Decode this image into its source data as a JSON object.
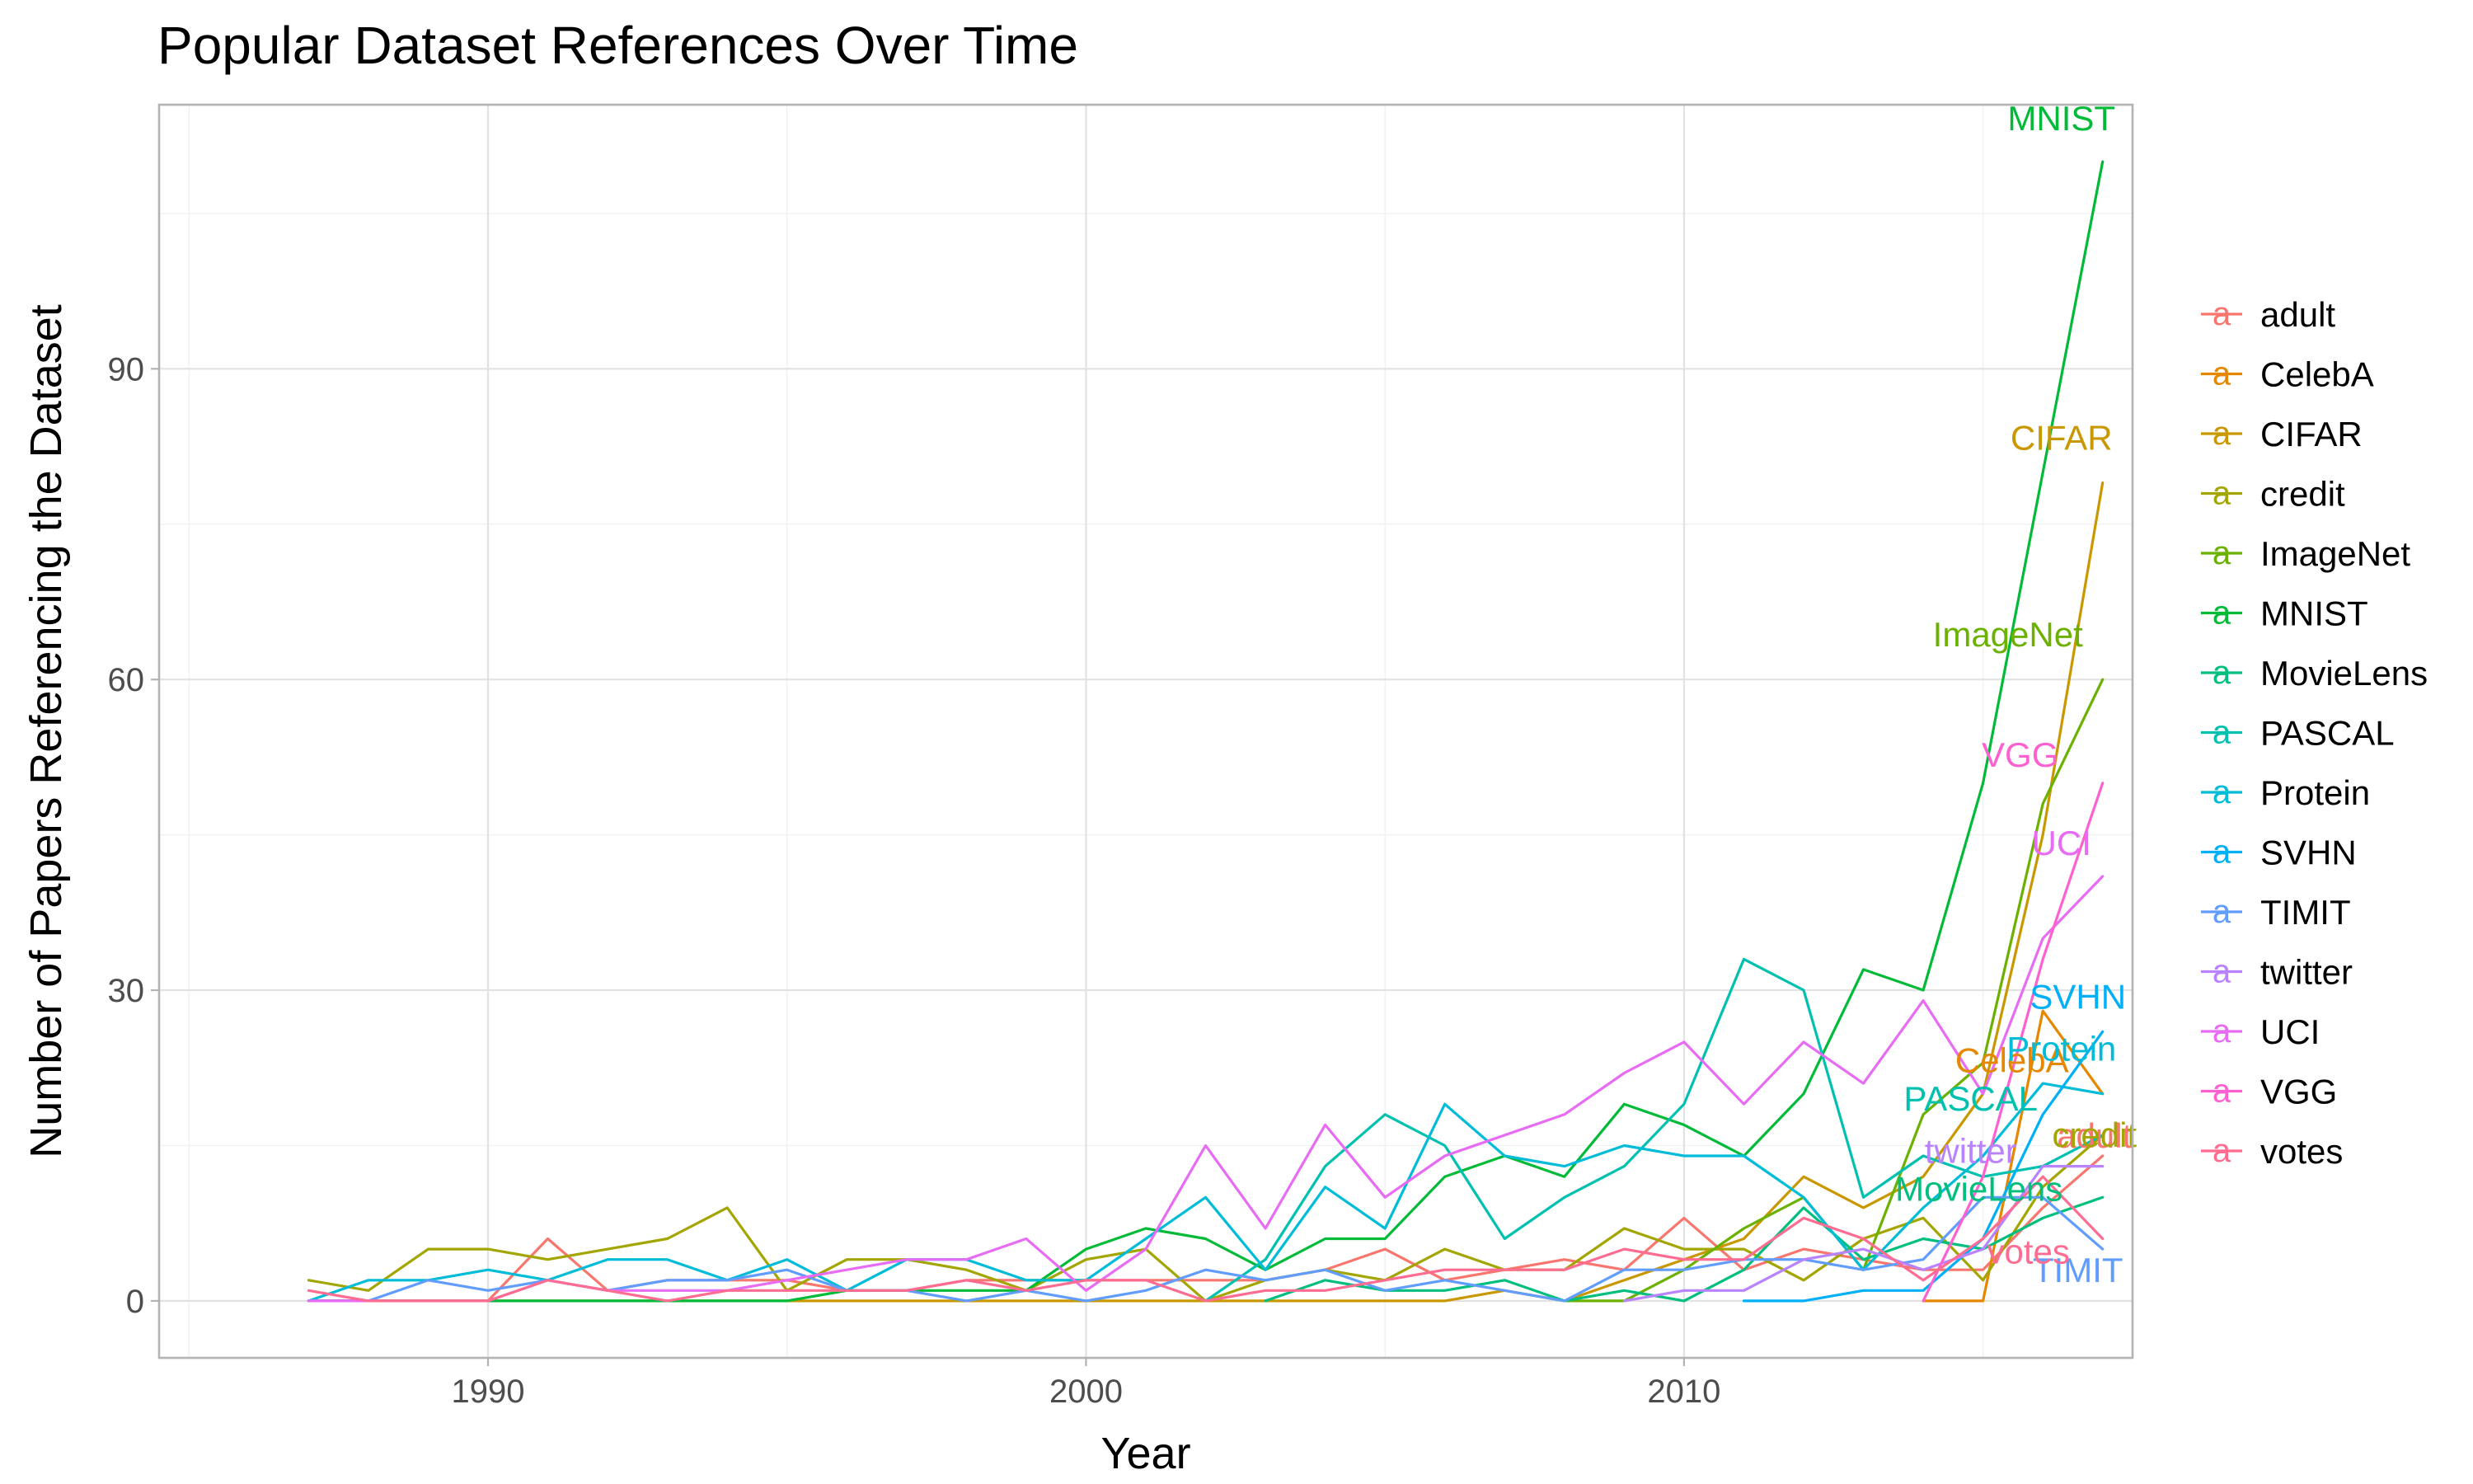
{
  "chart_data": {
    "type": "line",
    "title": "Popular Dataset References Over Time",
    "xlabel": "Year",
    "ylabel": "Number of Papers Referencing the Dataset",
    "xlim": [
      1984.5,
      2017.5
    ],
    "ylim": [
      -5.5,
      115.5
    ],
    "x_ticks": [
      1990,
      2000,
      2010
    ],
    "y_ticks": [
      0,
      30,
      60,
      90
    ],
    "grid": true,
    "legend_position": "right",
    "legend_key_glyph": "a",
    "x": [
      1987,
      1988,
      1989,
      1990,
      1991,
      1992,
      1993,
      1994,
      1995,
      1996,
      1997,
      1998,
      1999,
      2000,
      2001,
      2002,
      2003,
      2004,
      2005,
      2006,
      2007,
      2008,
      2009,
      2010,
      2011,
      2012,
      2013,
      2014,
      2015,
      2016,
      2017
    ],
    "series": [
      {
        "name": "adult",
        "color": "#F8766D",
        "values": [
          0,
          0,
          0,
          0,
          6,
          1,
          2,
          2,
          2,
          1,
          1,
          2,
          2,
          2,
          2,
          2,
          2,
          3,
          5,
          2,
          3,
          4,
          3,
          8,
          3,
          5,
          4,
          3,
          3,
          9,
          14
        ],
        "end_label": "adult"
      },
      {
        "name": "CelebA",
        "color": "#E58700",
        "values": [
          null,
          null,
          null,
          null,
          null,
          null,
          null,
          null,
          null,
          null,
          null,
          null,
          null,
          null,
          null,
          null,
          null,
          null,
          null,
          null,
          null,
          null,
          null,
          null,
          null,
          null,
          null,
          0,
          0,
          28,
          20
        ],
        "end_label": "CelebA"
      },
      {
        "name": "CIFAR",
        "color": "#C99800",
        "values": [
          0,
          0,
          0,
          0,
          0,
          0,
          0,
          0,
          0,
          0,
          0,
          0,
          0,
          0,
          0,
          0,
          0,
          0,
          0,
          0,
          1,
          0,
          2,
          4,
          6,
          12,
          9,
          12,
          20,
          45,
          79
        ],
        "end_label": "CIFAR"
      },
      {
        "name": "credit",
        "color": "#A3A500",
        "values": [
          2,
          1,
          5,
          5,
          4,
          5,
          6,
          9,
          1,
          4,
          4,
          3,
          1,
          4,
          5,
          0,
          2,
          3,
          2,
          5,
          3,
          3,
          7,
          5,
          5,
          2,
          6,
          8,
          2,
          11,
          16
        ],
        "end_label": "credit"
      },
      {
        "name": "ImageNet",
        "color": "#6BB100",
        "values": [
          null,
          null,
          null,
          null,
          null,
          null,
          null,
          null,
          null,
          null,
          null,
          null,
          null,
          null,
          null,
          null,
          null,
          null,
          null,
          null,
          null,
          0,
          0,
          3,
          7,
          10,
          3,
          18,
          23,
          48,
          60
        ],
        "end_label": "ImageNet"
      },
      {
        "name": "MNIST",
        "color": "#00BA38",
        "values": [
          0,
          0,
          0,
          0,
          0,
          0,
          0,
          0,
          0,
          1,
          1,
          1,
          1,
          5,
          7,
          6,
          3,
          6,
          6,
          12,
          14,
          12,
          19,
          17,
          14,
          20,
          32,
          30,
          50,
          80,
          110
        ],
        "end_label": "MNIST"
      },
      {
        "name": "MovieLens",
        "color": "#00BF7D",
        "values": [
          null,
          null,
          null,
          null,
          null,
          null,
          null,
          null,
          null,
          null,
          null,
          null,
          null,
          null,
          null,
          null,
          0,
          2,
          1,
          1,
          2,
          0,
          1,
          0,
          3,
          9,
          4,
          6,
          5,
          8,
          10
        ],
        "end_label": "MovieLens"
      },
      {
        "name": "PASCAL",
        "color": "#00C0AF",
        "values": [
          null,
          null,
          null,
          null,
          null,
          null,
          null,
          null,
          null,
          null,
          null,
          null,
          null,
          null,
          null,
          0,
          4,
          13,
          18,
          15,
          6,
          10,
          13,
          19,
          33,
          30,
          10,
          14,
          12,
          13,
          16
        ],
        "end_label": "PASCAL"
      },
      {
        "name": "Protein",
        "color": "#00BCD8",
        "values": [
          0,
          2,
          2,
          3,
          2,
          4,
          4,
          2,
          4,
          1,
          4,
          4,
          2,
          2,
          6,
          10,
          3,
          11,
          7,
          19,
          14,
          13,
          15,
          14,
          14,
          10,
          3,
          9,
          14,
          21,
          20
        ],
        "end_label": "Protein"
      },
      {
        "name": "SVHN",
        "color": "#00B0F6",
        "values": [
          null,
          null,
          null,
          null,
          null,
          null,
          null,
          null,
          null,
          null,
          null,
          null,
          null,
          null,
          null,
          null,
          null,
          null,
          null,
          null,
          null,
          null,
          null,
          null,
          0,
          0,
          1,
          1,
          6,
          18,
          26
        ],
        "end_label": "SVHN"
      },
      {
        "name": "TIMIT",
        "color": "#619CFF",
        "values": [
          0,
          0,
          2,
          1,
          2,
          1,
          2,
          2,
          3,
          1,
          1,
          0,
          1,
          0,
          1,
          3,
          2,
          3,
          1,
          2,
          1,
          0,
          3,
          3,
          4,
          4,
          3,
          4,
          10,
          10,
          5
        ],
        "end_label": "TIMIT"
      },
      {
        "name": "twitter",
        "color": "#B983FF",
        "values": [
          null,
          null,
          null,
          null,
          null,
          null,
          null,
          null,
          null,
          null,
          null,
          null,
          null,
          null,
          null,
          null,
          null,
          null,
          null,
          null,
          null,
          null,
          0,
          1,
          1,
          4,
          5,
          3,
          5,
          13,
          13
        ],
        "end_label": "twitter"
      },
      {
        "name": "UCI",
        "color": "#E76BF3",
        "values": [
          0,
          0,
          0,
          0,
          2,
          1,
          1,
          1,
          2,
          3,
          4,
          4,
          6,
          1,
          5,
          15,
          7,
          17,
          10,
          14,
          16,
          18,
          22,
          25,
          19,
          25,
          21,
          29,
          20,
          35,
          41
        ],
        "end_label": "UCI"
      },
      {
        "name": "VGG",
        "color": "#FD61D1",
        "values": [
          null,
          null,
          null,
          null,
          null,
          null,
          null,
          null,
          null,
          null,
          null,
          null,
          null,
          null,
          null,
          null,
          null,
          null,
          null,
          null,
          null,
          null,
          null,
          null,
          null,
          null,
          null,
          0,
          12,
          33,
          50
        ],
        "end_label": "VGG"
      },
      {
        "name": "votes",
        "color": "#FF6C91",
        "values": [
          1,
          0,
          0,
          0,
          2,
          1,
          0,
          1,
          1,
          1,
          1,
          2,
          1,
          2,
          2,
          0,
          1,
          1,
          2,
          3,
          3,
          3,
          5,
          4,
          4,
          8,
          6,
          2,
          6,
          12,
          6
        ],
        "end_label": "votes"
      }
    ]
  }
}
